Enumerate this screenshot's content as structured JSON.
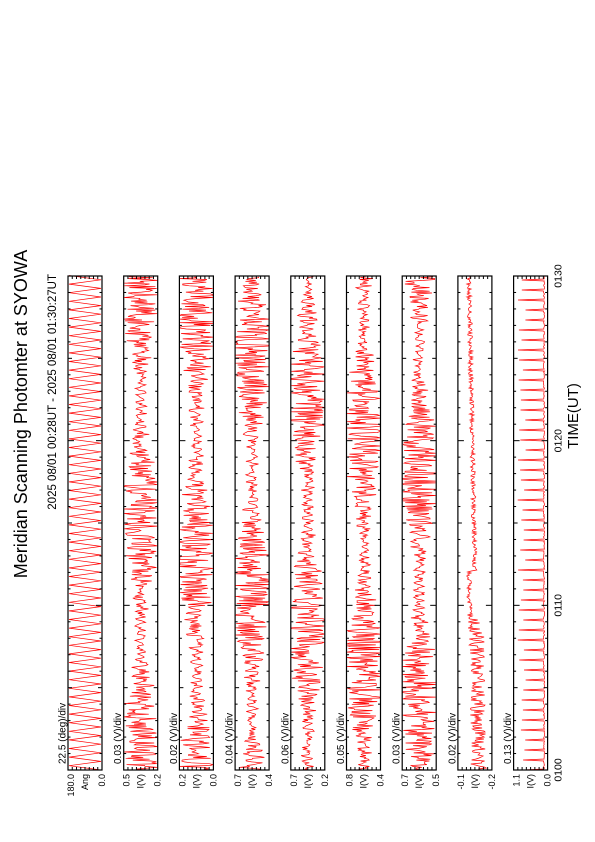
{
  "chart_data": {
    "type": "line",
    "orientation": "rotated-90",
    "title": "Meridian Scanning Photomter at SYOWA",
    "time_range_label": "2025 08/01 00:28UT - 2025 08/01 01:30:27UT",
    "xlabel": "TIME(UT)",
    "x_ticks": [
      "0100",
      "0110",
      "0120",
      "0130"
    ],
    "x_range": [
      "0100",
      "0130"
    ],
    "grid": false,
    "line_color": "#ff0000",
    "panels": [
      {
        "scale_label": "22.5 (deg)/div",
        "ylabel": "Ang",
        "ylim": [
          0.0,
          180.0
        ],
        "top_tick": "180.0",
        "bottom_tick": "0.0",
        "style": "sweep"
      },
      {
        "scale_label": "0.03 (V)/div",
        "ylabel": "I(V)",
        "ylim": [
          0.2,
          0.5
        ],
        "top_tick": "0.5",
        "bottom_tick": "0.2",
        "style": "noise"
      },
      {
        "scale_label": "0.02 (V)/div",
        "ylabel": "I(V)",
        "ylim": [
          0.0,
          0.2
        ],
        "top_tick": "0.2",
        "bottom_tick": "0.0",
        "style": "noise"
      },
      {
        "scale_label": "0.04 (V)/div",
        "ylabel": "I(V)",
        "ylim": [
          0.4,
          0.7
        ],
        "top_tick": "0.7",
        "bottom_tick": "0.4",
        "style": "noise"
      },
      {
        "scale_label": "0.06 (V)/div",
        "ylabel": "I(V)",
        "ylim": [
          0.2,
          0.7
        ],
        "top_tick": "0.7",
        "bottom_tick": "0.2",
        "style": "noise"
      },
      {
        "scale_label": "0.05 (V)/div",
        "ylabel": "I(V)",
        "ylim": [
          0.4,
          0.8
        ],
        "top_tick": "0.8",
        "bottom_tick": "0.4",
        "style": "noise"
      },
      {
        "scale_label": "0.03 (V)/div",
        "ylabel": "I(V)",
        "ylim": [
          0.5,
          0.7
        ],
        "top_tick": "0.7",
        "bottom_tick": "0.5",
        "style": "noise"
      },
      {
        "scale_label": "0.02 (V)/div",
        "ylabel": "I(V)",
        "ylim": [
          -0.2,
          -0.1
        ],
        "top_tick": "-0.1",
        "bottom_tick": "-0.2",
        "style": "drift"
      },
      {
        "scale_label": "0.13 (V)/div",
        "ylabel": "I(V)",
        "ylim": [
          0.0,
          1.1
        ],
        "top_tick": "1.1",
        "bottom_tick": "0.0",
        "style": "spikes"
      }
    ]
  }
}
